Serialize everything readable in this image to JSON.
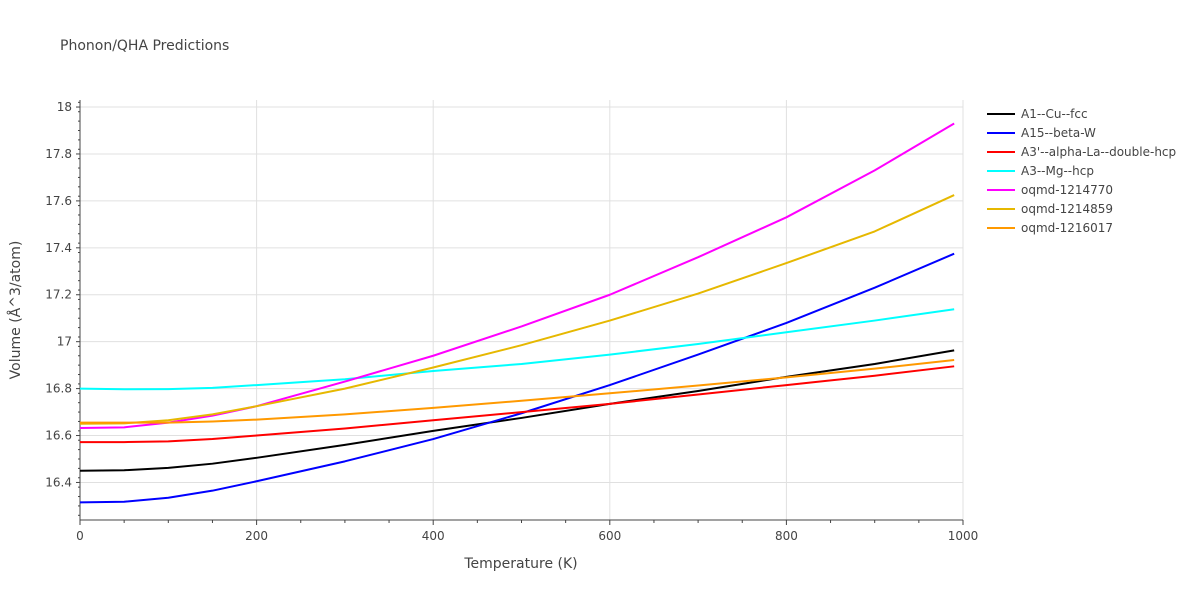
{
  "chart_data": {
    "type": "line",
    "title": "Phonon/QHA Predictions",
    "xlabel": "Temperature (K)",
    "ylabel": "Volume (Å^3/atom)",
    "xlim": [
      0,
      1000
    ],
    "ylim": [
      16.24,
      18.03
    ],
    "x_ticks": [
      0,
      200,
      400,
      600,
      800,
      1000
    ],
    "y_ticks": [
      16.4,
      16.6,
      16.8,
      17.0,
      17.2,
      17.4,
      17.6,
      17.8,
      18.0
    ],
    "x_tick_labels": [
      "0",
      "200",
      "400",
      "600",
      "800",
      "1000"
    ],
    "y_tick_labels": [
      "16.4",
      "16.6",
      "16.8",
      "17",
      "17.2",
      "17.4",
      "17.6",
      "17.8",
      "18"
    ],
    "grid": true,
    "legend_position": "right",
    "series": [
      {
        "name": "A1--Cu--fcc",
        "color": "#000000",
        "x": [
          0,
          50,
          100,
          150,
          200,
          300,
          400,
          500,
          600,
          700,
          800,
          900,
          990
        ],
        "y": [
          16.45,
          16.452,
          16.462,
          16.48,
          16.505,
          16.56,
          16.62,
          16.675,
          16.735,
          16.79,
          16.85,
          16.905,
          16.963
        ]
      },
      {
        "name": "A15--beta-W",
        "color": "#0000ff",
        "x": [
          0,
          50,
          100,
          150,
          200,
          300,
          400,
          500,
          600,
          700,
          800,
          900,
          990
        ],
        "y": [
          16.315,
          16.318,
          16.335,
          16.365,
          16.405,
          16.49,
          16.585,
          16.695,
          16.815,
          16.945,
          17.08,
          17.23,
          17.375
        ]
      },
      {
        "name": "A3'--alpha-La--double-hcp",
        "color": "#ff0000",
        "x": [
          0,
          50,
          100,
          150,
          200,
          300,
          400,
          500,
          600,
          700,
          800,
          900,
          990
        ],
        "y": [
          16.572,
          16.572,
          16.575,
          16.585,
          16.6,
          16.63,
          16.665,
          16.7,
          16.735,
          16.775,
          16.815,
          16.855,
          16.895
        ]
      },
      {
        "name": "A3--Mg--hcp",
        "color": "#00ffff",
        "x": [
          0,
          50,
          100,
          150,
          200,
          300,
          400,
          500,
          600,
          700,
          800,
          900,
          990
        ],
        "y": [
          16.8,
          16.797,
          16.798,
          16.803,
          16.815,
          16.84,
          16.875,
          16.905,
          16.945,
          16.99,
          17.04,
          17.09,
          17.138
        ]
      },
      {
        "name": "oqmd-1214770",
        "color": "#ff00ff",
        "x": [
          0,
          50,
          100,
          150,
          200,
          300,
          400,
          500,
          600,
          700,
          800,
          900,
          990
        ],
        "y": [
          16.632,
          16.635,
          16.655,
          16.685,
          16.725,
          16.83,
          16.94,
          17.065,
          17.2,
          17.36,
          17.53,
          17.73,
          17.93
        ]
      },
      {
        "name": "oqmd-1214859",
        "color": "#e6b800",
        "x": [
          0,
          50,
          100,
          150,
          200,
          300,
          400,
          500,
          600,
          700,
          800,
          900,
          990
        ],
        "y": [
          16.65,
          16.652,
          16.665,
          16.69,
          16.725,
          16.8,
          16.89,
          16.985,
          17.09,
          17.205,
          17.335,
          17.47,
          17.625
        ]
      },
      {
        "name": "oqmd-1216017",
        "color": "#ff9900",
        "x": [
          0,
          50,
          100,
          150,
          200,
          300,
          400,
          500,
          600,
          700,
          800,
          900,
          990
        ],
        "y": [
          16.655,
          16.655,
          16.655,
          16.66,
          16.668,
          16.69,
          16.718,
          16.748,
          16.78,
          16.813,
          16.848,
          16.885,
          16.922
        ]
      }
    ]
  }
}
